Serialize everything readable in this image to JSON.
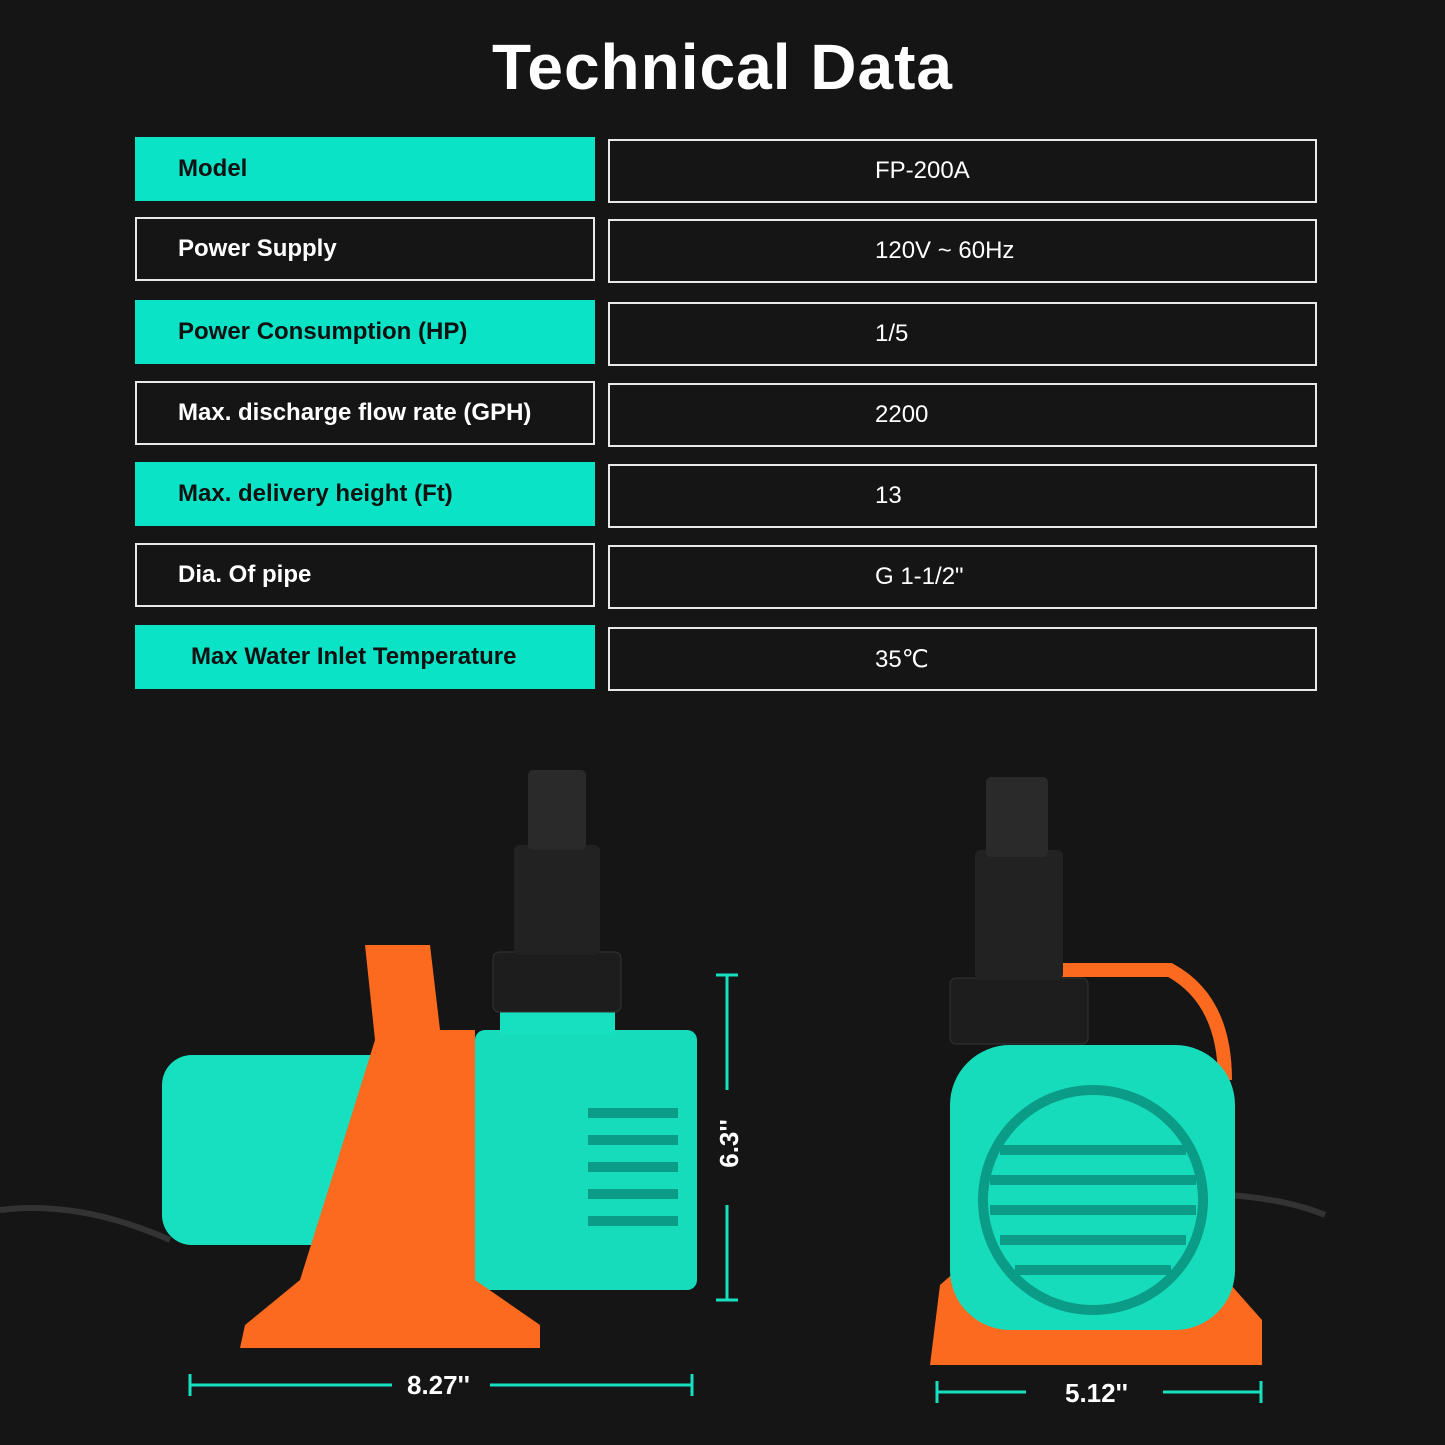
{
  "title": "Technical Data",
  "rows": [
    {
      "label": "Model",
      "value": "FP-200A"
    },
    {
      "label": "Power Supply",
      "value": "120V ~ 60Hz"
    },
    {
      "label": "Power Consumption (HP)",
      "value": "1/5"
    },
    {
      "label": "Max. discharge flow rate (GPH)",
      "value": "2200"
    },
    {
      "label": "Max. delivery height (Ft)",
      "value": "13"
    },
    {
      "label": "Dia. Of pipe",
      "value": "G 1-1/2\""
    },
    {
      "label": "Max Water Inlet Temperature",
      "value": "35℃"
    }
  ],
  "dimensions": {
    "length": "8.27''",
    "height": "6.3''",
    "width": "5.12''"
  },
  "colors": {
    "accent": "#0ae3c6",
    "orange": "#fb6a1e",
    "background": "#151515"
  }
}
